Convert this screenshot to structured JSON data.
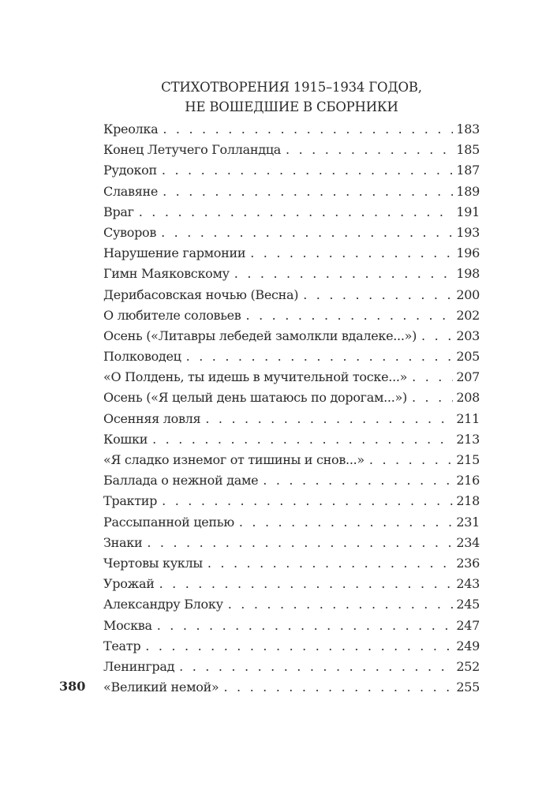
{
  "heading": {
    "line1": "СТИХОТВОРЕНИЯ 1915–1934 ГОДОВ,",
    "line2": "НЕ ВОШЕДШИЕ В СБОРНИКИ"
  },
  "entries": [
    {
      "title": "Креолка",
      "page": "183"
    },
    {
      "title": "Конец Летучего Голландца",
      "page": "185"
    },
    {
      "title": "Рудокоп",
      "page": "187"
    },
    {
      "title": "Славяне",
      "page": "189"
    },
    {
      "title": "Враг",
      "page": "191"
    },
    {
      "title": "Суворов",
      "page": "193"
    },
    {
      "title": "Нарушение гармонии",
      "page": "196"
    },
    {
      "title": "Гимн Маяковскому",
      "page": "198"
    },
    {
      "title": "Дерибасовская ночью  (Весна)",
      "page": "200"
    },
    {
      "title": "О любителе соловьев",
      "page": "202"
    },
    {
      "title": "Осень («Литавры лебедей замолкли вдалеке...»)",
      "page": "203"
    },
    {
      "title": "Полководец",
      "page": "205"
    },
    {
      "title": "«О Полдень, ты идешь в мучительной тоске...»",
      "page": "207"
    },
    {
      "title": "Осень («Я целый день шатаюсь по дорогам...»)",
      "page": "208"
    },
    {
      "title": "Осенняя ловля",
      "page": "211"
    },
    {
      "title": "Кошки",
      "page": "213"
    },
    {
      "title": "«Я сладко изнемог от тишины и снов...»",
      "page": "215"
    },
    {
      "title": "Баллада о нежной даме",
      "page": "216"
    },
    {
      "title": "Трактир",
      "page": "218"
    },
    {
      "title": "Рассыпанной цепью",
      "page": "231"
    },
    {
      "title": "Знаки",
      "page": "234"
    },
    {
      "title": "Чертовы куклы",
      "page": "236"
    },
    {
      "title": "Урожай",
      "page": "243"
    },
    {
      "title": "Александру Блоку",
      "page": "245"
    },
    {
      "title": "Москва",
      "page": "247"
    },
    {
      "title": "Театр",
      "page": "249"
    },
    {
      "title": "Ленинград",
      "page": "252"
    },
    {
      "title": "«Великий немой»",
      "page": "255"
    }
  ],
  "folio": "380"
}
